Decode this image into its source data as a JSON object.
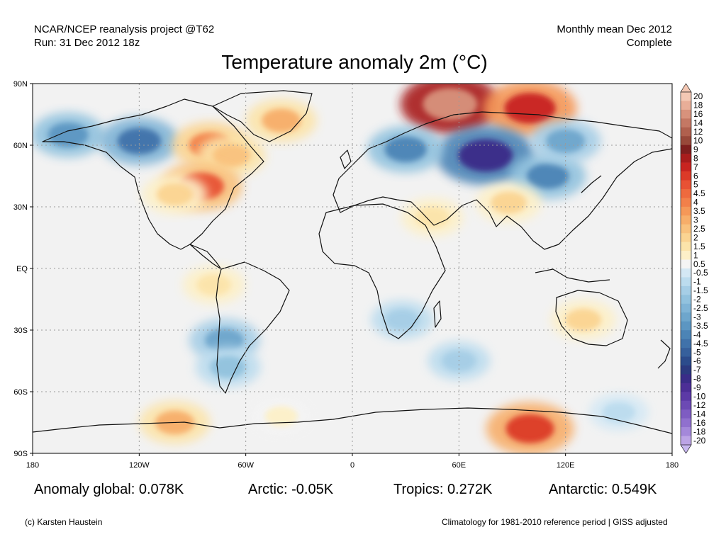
{
  "header": {
    "source_line": "NCAR/NCEP reanalysis project @T62",
    "run_line": "Run: 31 Dec 2012 18z",
    "period_line": "Monthly mean Dec 2012",
    "status_line": "Complete"
  },
  "title": "Temperature anomaly 2m (°C)",
  "axes": {
    "lat_labels": [
      "90N",
      "60N",
      "30N",
      "EQ",
      "30S",
      "60S",
      "90S"
    ],
    "lon_labels": [
      "180",
      "120W",
      "60W",
      "0",
      "60E",
      "120E",
      "180"
    ]
  },
  "colorbar": {
    "labels": [
      "20",
      "18",
      "16",
      "14",
      "12",
      "10",
      "9",
      "8",
      "7",
      "6",
      "5",
      "4.5",
      "4",
      "3.5",
      "3",
      "2.5",
      "2",
      "1.5",
      "1",
      "0.5",
      "-0.5",
      "-1",
      "-1.5",
      "-2",
      "-2.5",
      "-3",
      "-3.5",
      "-4",
      "-4.5",
      "-5",
      "-6",
      "-7",
      "-8",
      "-9",
      "-10",
      "-12",
      "-14",
      "-16",
      "-18",
      "-20"
    ],
    "colors": [
      "#f4c8b4",
      "#e8ae98",
      "#d8927c",
      "#c47864",
      "#b0604e",
      "#98483a",
      "#7e1e1e",
      "#a81c1c",
      "#c82420",
      "#dc3a28",
      "#e85234",
      "#ee6a3e",
      "#f2804a",
      "#f59858",
      "#f7ae6a",
      "#f9c27e",
      "#fbd492",
      "#fce4aa",
      "#fdf0c8",
      "#f4f4f4",
      "#d4e8f4",
      "#bcdcee",
      "#a6cee6",
      "#92c2de",
      "#80b4d6",
      "#6ea6cc",
      "#5c96c2",
      "#4c84b6",
      "#4072aa",
      "#36609c",
      "#2c4c8c",
      "#2c3a80",
      "#3a2c88",
      "#4c2e96",
      "#5c3aa6",
      "#6c4ab4",
      "#7e5cc2",
      "#9070ce",
      "#a488da",
      "#bca4e6"
    ],
    "top_arrow_color": "#f4c8b4",
    "bottom_arrow_color": "#c8b8f0"
  },
  "stats": {
    "global": "Anomaly global: 0.078K",
    "arctic": "Arctic: -0.05K",
    "tropics": "Tropics: 0.272K",
    "antarctic": "Antarctic: 0.549K"
  },
  "footer": {
    "credit": "(c) Karsten Haustein",
    "note": "Climatology for 1981-2010 reference period | GISS adjusted"
  },
  "map": {
    "projection": "equirectangular",
    "lon_range": [
      -180,
      180
    ],
    "lat_range": [
      -90,
      90
    ],
    "background_color": "#f2f2f2",
    "anomalies": [
      {
        "region": "Alaska / Bering",
        "lon": -160,
        "lat": 65,
        "value": -3.5
      },
      {
        "region": "Western Canada",
        "lon": -120,
        "lat": 62,
        "value": -4.5
      },
      {
        "region": "Hudson Bay",
        "lon": -80,
        "lat": 60,
        "value": 4
      },
      {
        "region": "Eastern Canada",
        "lon": -68,
        "lat": 55,
        "value": 2.5
      },
      {
        "region": "Greenland",
        "lon": -40,
        "lat": 72,
        "value": 3
      },
      {
        "region": "Eastern USA",
        "lon": -85,
        "lat": 40,
        "value": 5
      },
      {
        "region": "Central USA",
        "lon": -100,
        "lat": 36,
        "value": 2
      },
      {
        "region": "Arctic Russia",
        "lon": 55,
        "lat": 80,
        "value": 16
      },
      {
        "region": "Taymyr",
        "lon": 100,
        "lat": 78,
        "value": 7
      },
      {
        "region": "Central Siberia",
        "lon": 75,
        "lat": 55,
        "value": -8
      },
      {
        "region": "Eastern Europe",
        "lon": 30,
        "lat": 58,
        "value": -4
      },
      {
        "region": "Mongolia",
        "lon": 110,
        "lat": 45,
        "value": -4
      },
      {
        "region": "East Siberia",
        "lon": 120,
        "lat": 62,
        "value": -3
      },
      {
        "region": "Tibet",
        "lon": 88,
        "lat": 32,
        "value": 2
      },
      {
        "region": "Arabia",
        "lon": 45,
        "lat": 25,
        "value": 1.5
      },
      {
        "region": "Australia",
        "lon": 130,
        "lat": -25,
        "value": 2
      },
      {
        "region": "Peru",
        "lon": -78,
        "lat": -8,
        "value": 1.5
      },
      {
        "region": "Southern Andes",
        "lon": -72,
        "lat": -35,
        "value": -3
      },
      {
        "region": "Patagonia",
        "lon": -70,
        "lat": -48,
        "value": -2
      },
      {
        "region": "Southern Africa",
        "lon": 28,
        "lat": -25,
        "value": -1.5
      },
      {
        "region": "South Indian Ocean",
        "lon": 60,
        "lat": -45,
        "value": -1.5
      },
      {
        "region": "West Antarctica",
        "lon": -100,
        "lat": -75,
        "value": 3
      },
      {
        "region": "East Antarctica",
        "lon": 100,
        "lat": -78,
        "value": 6
      },
      {
        "region": "Ross Sea",
        "lon": 150,
        "lat": -70,
        "value": -1
      },
      {
        "region": "Weddell Sea",
        "lon": -40,
        "lat": -72,
        "value": 1
      }
    ]
  }
}
